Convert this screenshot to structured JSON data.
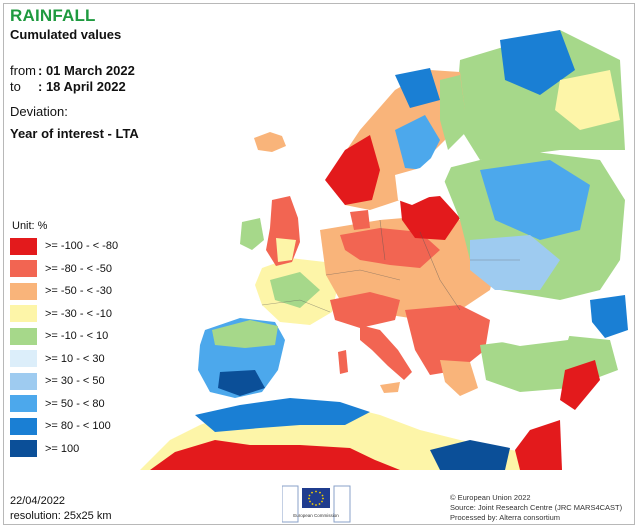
{
  "title": "RAINFALL",
  "subtitle": "Cumulated values",
  "period": {
    "from_label": "from",
    "from_value": ": 01 March 2022",
    "to_label": "to",
    "to_value": ": 18 April 2022"
  },
  "deviation": {
    "label": "Deviation:",
    "value": "Year of interest - LTA"
  },
  "legend": {
    "unit": "Unit:  %",
    "items": [
      {
        "label": ">= -100 - < -80",
        "color": "#e31a1c"
      },
      {
        "label": ">= -80 - < -50",
        "color": "#f26552"
      },
      {
        "label": ">= -50 - < -30",
        "color": "#f9b47a"
      },
      {
        "label": ">= -30 - < -10",
        "color": "#fdf5a8"
      },
      {
        "label": ">= -10 - < 10",
        "color": "#a6d88a"
      },
      {
        "label": ">= 10 - < 30",
        "color": "#dceefa"
      },
      {
        "label": ">= 30 - < 50",
        "color": "#9ecbf0"
      },
      {
        "label": ">= 50 - < 80",
        "color": "#4ca8ec"
      },
      {
        "label": ">= 80 - < 100",
        "color": "#1a7fd4"
      },
      {
        "label": ">= 100",
        "color": "#0b4f98"
      }
    ]
  },
  "footer": {
    "date": "22/04/2022",
    "resolution": "resolution:  25x25 km",
    "copyright": "© European Union 2022",
    "source": "Source: Joint Research Centre (JRC MARS4CAST)",
    "processed": "Processed by: Alterra consortium",
    "logo_text": "European Commission",
    "logo_icon": "eu-flag-icon"
  }
}
